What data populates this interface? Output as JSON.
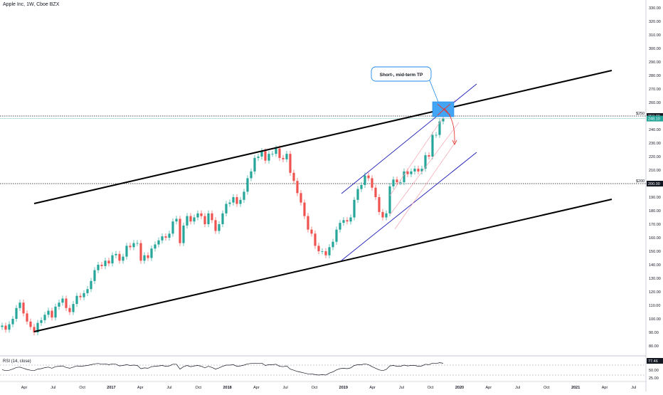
{
  "header": {
    "title": "Apple Inc, 1W, Cboe BZX"
  },
  "chart_data": {
    "type": "candlestick",
    "symbol": "Apple Inc",
    "interval": "1W",
    "exchange": "Cboe BZX",
    "y_axis": {
      "ticks": [
        80,
        90,
        100,
        110,
        120,
        130,
        140,
        150,
        160,
        170,
        180,
        190,
        200,
        210,
        220,
        230,
        240,
        250,
        260,
        270,
        280,
        290,
        300,
        310,
        320,
        330
      ],
      "labels": [
        "80.00",
        "90.00",
        "100.00",
        "110.00",
        "120.00",
        "130.00",
        "140.00",
        "150.00",
        "160.00",
        "170.00",
        "180.00",
        "190.00",
        "200.00",
        "210.00",
        "220.00",
        "230.00",
        "240.00",
        "250.00",
        "260.00",
        "270.00",
        "280.00",
        "290.00",
        "300.00",
        "310.00",
        "320.00",
        "330.00"
      ],
      "range": [
        75,
        335
      ]
    },
    "x_axis": {
      "labels": [
        "Apr",
        "Jul",
        "Oct",
        "2017",
        "Apr",
        "Jul",
        "Oct",
        "2018",
        "Apr",
        "Jul",
        "Oct",
        "2019",
        "Apr",
        "Jul",
        "Oct",
        "2020",
        "Apr",
        "Jul",
        "Oct",
        "2021",
        "Apr",
        "Jul"
      ]
    },
    "price_labels": [
      {
        "value": 250,
        "text": "250.00",
        "tag": "$250",
        "color": "#131722"
      },
      {
        "value": 248.1,
        "text": "248.10",
        "color": "#26a69a"
      },
      {
        "value": 200,
        "text": "200.00",
        "tag": "$200",
        "color": "#131722"
      }
    ],
    "weekly_close": [
      95,
      92,
      96,
      100,
      108,
      112,
      104,
      98,
      94,
      90,
      97,
      99,
      103,
      106,
      101,
      109,
      112,
      115,
      108,
      105,
      111,
      117,
      116,
      119,
      122,
      128,
      136,
      140,
      139,
      143,
      141,
      147,
      148,
      143,
      146,
      154,
      153,
      156,
      156,
      143,
      147,
      145,
      152,
      155,
      158,
      161,
      160,
      163,
      172,
      174,
      156,
      169,
      176,
      172,
      175,
      178,
      176,
      170,
      178,
      173,
      165,
      170,
      178,
      185,
      186,
      190,
      185,
      188,
      194,
      204,
      209,
      219,
      220,
      224,
      217,
      222,
      222,
      226,
      219,
      218,
      222,
      208,
      202,
      193,
      186,
      176,
      166,
      163,
      154,
      150,
      150,
      147,
      153,
      157,
      166,
      171,
      173,
      172,
      175,
      188,
      196,
      199,
      206,
      204,
      197,
      190,
      179,
      175,
      178,
      198,
      203,
      201,
      201,
      209,
      207,
      209,
      211,
      209,
      211,
      221,
      220,
      236,
      236,
      246,
      248
    ],
    "annotation": {
      "text": "Short-, mid-term TP"
    },
    "indicator": {
      "name": "RSI (14, close)",
      "value_label": "77.46",
      "ticks": [
        "50.00",
        "25.00"
      ],
      "values": [
        45,
        40,
        42,
        48,
        56,
        58,
        52,
        46,
        42,
        40,
        48,
        50,
        55,
        58,
        52,
        60,
        62,
        64,
        56,
        52,
        58,
        64,
        62,
        64,
        66,
        70,
        74,
        76,
        72,
        74,
        70,
        74,
        72,
        64,
        66,
        70,
        66,
        68,
        66,
        50,
        54,
        52,
        60,
        62,
        64,
        66,
        62,
        64,
        72,
        72,
        48,
        60,
        66,
        60,
        64,
        66,
        62,
        54,
        62,
        56,
        48,
        54,
        62,
        68,
        68,
        70,
        62,
        64,
        68,
        74,
        76,
        78,
        76,
        78,
        66,
        70,
        70,
        72,
        62,
        60,
        64,
        48,
        42,
        36,
        32,
        28,
        24,
        24,
        20,
        18,
        20,
        18,
        28,
        34,
        44,
        50,
        52,
        50,
        54,
        66,
        70,
        70,
        74,
        70,
        60,
        52,
        44,
        40,
        46,
        64,
        66,
        62,
        62,
        68,
        64,
        66,
        66,
        62,
        64,
        72,
        70,
        78,
        76,
        80,
        77
      ]
    }
  }
}
